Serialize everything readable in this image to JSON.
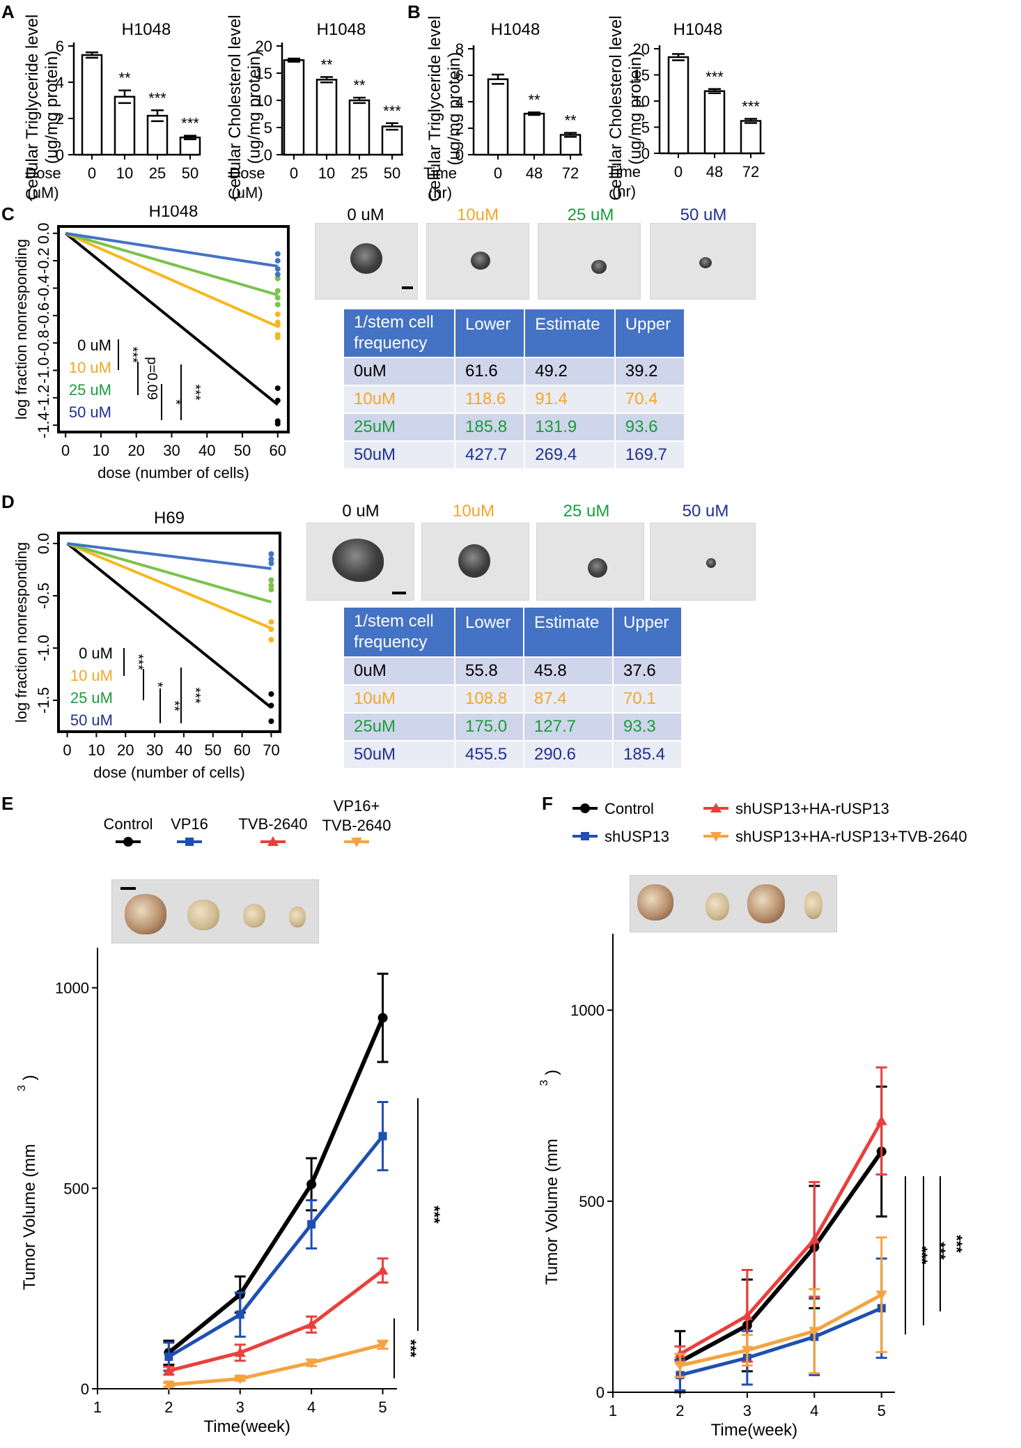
{
  "panel_letters": [
    "A",
    "B",
    "C",
    "D",
    "E",
    "F"
  ],
  "colors": {
    "c0": "#000000",
    "c10": "#f5a623",
    "c25": "#1a9b3c",
    "c50": "#1f2f8f",
    "line50": "#4472c4",
    "line25": "#7cc24b",
    "line10": "#f5b820",
    "tbl_head": "#4472c4",
    "ctrl": "#000000",
    "vp16": "#1f4fb0",
    "tvb": "#e8403c",
    "combo": "#f5a340"
  },
  "chart_data": [
    {
      "id": "A1",
      "type": "bar",
      "title": "H1048",
      "ylabel": "Cellular Triglyceride level\n(ug/mg protein)",
      "xlabel": "Dose\n(uM)",
      "categories": [
        "0",
        "10",
        "25",
        "50"
      ],
      "values": [
        5.5,
        3.2,
        2.15,
        0.95
      ],
      "errors": [
        0.15,
        0.35,
        0.3,
        0.1
      ],
      "significance": [
        "",
        "**",
        "***",
        "***"
      ],
      "ylim": [
        0,
        6
      ],
      "yticks": [
        0,
        2,
        4,
        6
      ]
    },
    {
      "id": "A2",
      "type": "bar",
      "title": "H1048",
      "ylabel": "Cellular Cholesterol level\n(ug/mg protein)",
      "xlabel": "Dose\n(uM)",
      "categories": [
        "0",
        "10",
        "25",
        "50"
      ],
      "values": [
        17.4,
        13.8,
        10.0,
        5.2
      ],
      "errors": [
        0.3,
        0.5,
        0.5,
        0.6
      ],
      "significance": [
        "",
        "**",
        "**",
        "***"
      ],
      "ylim": [
        0,
        20
      ],
      "yticks": [
        0,
        5,
        10,
        15,
        20
      ]
    },
    {
      "id": "B1",
      "type": "bar",
      "title": "H1048",
      "ylabel": "Cellular Triglyceride level\n(ug/mg protein)",
      "xlabel": "Time\n(hr)",
      "categories": [
        "0",
        "48",
        "72"
      ],
      "values": [
        5.7,
        3.1,
        1.5
      ],
      "errors": [
        0.35,
        0.1,
        0.15
      ],
      "significance": [
        "",
        "**",
        "**"
      ],
      "ylim": [
        0,
        8
      ],
      "yticks": [
        0,
        2,
        4,
        6,
        8
      ]
    },
    {
      "id": "B2",
      "type": "bar",
      "title": "H1048",
      "ylabel": "Cellular Cholesterol level\n(ug/mg protein)",
      "xlabel": "Time\n(hr)",
      "categories": [
        "0",
        "48",
        "72"
      ],
      "values": [
        18.4,
        11.9,
        6.2
      ],
      "errors": [
        0.6,
        0.4,
        0.4
      ],
      "significance": [
        "",
        "***",
        "***"
      ],
      "ylim": [
        0,
        20
      ],
      "yticks": [
        0,
        5,
        10,
        15,
        20
      ]
    },
    {
      "id": "C",
      "type": "line",
      "title": "H1048",
      "xlabel": "dose (number of cells)",
      "ylabel": "log fraction nonresponding",
      "xlim": [
        -2,
        63
      ],
      "ylim": [
        -1.45,
        0.05
      ],
      "xticks": [
        0,
        10,
        20,
        30,
        40,
        50,
        60
      ],
      "yticks": [
        0.0,
        -0.2,
        -0.4,
        -0.6,
        -0.8,
        -1.0,
        -1.2,
        -1.4
      ],
      "series": [
        {
          "name": "0 uM",
          "x": [
            0,
            60
          ],
          "y": [
            0,
            -1.25
          ],
          "points": [
            -1.13,
            -1.22,
            -1.37,
            -1.39
          ]
        },
        {
          "name": "10 uM",
          "x": [
            0,
            60
          ],
          "y": [
            0,
            -0.68
          ],
          "points": [
            -0.59,
            -0.65,
            -0.67,
            -0.74,
            -0.76
          ]
        },
        {
          "name": "25 uM",
          "x": [
            0,
            60
          ],
          "y": [
            0,
            -0.45
          ],
          "points": [
            -0.33,
            -0.42,
            -0.47,
            -0.52
          ]
        },
        {
          "name": "50 uM",
          "x": [
            0,
            60
          ],
          "y": [
            0,
            -0.24
          ],
          "points": [
            -0.15,
            -0.2,
            -0.26,
            -0.3
          ]
        }
      ],
      "legend": [
        "0 uM",
        "10 uM",
        "25 uM",
        "50 uM"
      ],
      "stats": [
        "***",
        "p=0.09",
        "*",
        "***"
      ]
    },
    {
      "id": "D",
      "type": "line",
      "title": "H69",
      "xlabel": "dose (number of cells)",
      "ylabel": "log fraction nonresponding",
      "xlim": [
        -3,
        73
      ],
      "ylim": [
        -1.8,
        0.1
      ],
      "xticks": [
        0,
        10,
        20,
        30,
        40,
        50,
        60,
        70
      ],
      "yticks": [
        0.0,
        -0.5,
        -1.0,
        -1.5
      ],
      "series": [
        {
          "name": "0 uM",
          "x": [
            0,
            70
          ],
          "y": [
            0,
            -1.57
          ],
          "points": [
            -1.44,
            -1.55,
            -1.7
          ]
        },
        {
          "name": "10 uM",
          "x": [
            0,
            70
          ],
          "y": [
            0,
            -0.81
          ],
          "points": [
            -0.75,
            -0.82,
            -0.92
          ]
        },
        {
          "name": "25 uM",
          "x": [
            0,
            70
          ],
          "y": [
            0,
            -0.56
          ],
          "points": [
            -0.35,
            -0.4,
            -0.44
          ]
        },
        {
          "name": "50 uM",
          "x": [
            0,
            70
          ],
          "y": [
            0,
            -0.24
          ],
          "points": [
            -0.1,
            -0.15,
            -0.19
          ]
        }
      ],
      "legend": [
        "0 uM",
        "10 uM",
        "25 uM",
        "50 uM"
      ],
      "stats": [
        "***",
        "*",
        "**",
        "***"
      ]
    },
    {
      "id": "E",
      "type": "line",
      "xlabel": "Time(week)",
      "ylabel": "Tumor Volume (mm",
      "ylabel_sup": "3",
      "ylabel_end": ")",
      "xlim": [
        1,
        5.2
      ],
      "ylim": [
        0,
        1100
      ],
      "xticks": [
        1,
        2,
        3,
        4,
        5
      ],
      "yticks": [
        0,
        500,
        1000
      ],
      "series": [
        {
          "name": "Control",
          "x": [
            2,
            3,
            4,
            5
          ],
          "y": [
            90,
            235,
            510,
            925
          ],
          "err": [
            30,
            45,
            65,
            110
          ]
        },
        {
          "name": "VP16",
          "x": [
            2,
            3,
            4,
            5
          ],
          "y": [
            80,
            185,
            410,
            630
          ],
          "err": [
            35,
            55,
            60,
            85
          ]
        },
        {
          "name": "TVB-2640",
          "x": [
            2,
            3,
            4,
            5
          ],
          "y": [
            45,
            90,
            160,
            295
          ],
          "err": [
            10,
            20,
            20,
            30
          ]
        },
        {
          "name": "VP16+ TVB-2640",
          "x": [
            2,
            3,
            4,
            5
          ],
          "y": [
            10,
            25,
            65,
            110
          ],
          "err": [
            5,
            5,
            8,
            10
          ]
        }
      ],
      "legend": [
        "Control",
        "VP16",
        "TVB-2640",
        "VP16+\nTVB-2640"
      ],
      "stats": [
        "***",
        "***"
      ]
    },
    {
      "id": "F",
      "type": "line",
      "xlabel": "Time(week)",
      "ylabel": "Tumor Volume (mm",
      "ylabel_sup": "3",
      "ylabel_end": ")",
      "xlim": [
        1,
        5.2
      ],
      "ylim": [
        0,
        1200
      ],
      "xticks": [
        1,
        2,
        3,
        4,
        5
      ],
      "yticks": [
        0,
        500,
        1000
      ],
      "series": [
        {
          "name": "Control",
          "x": [
            2,
            3,
            4,
            5
          ],
          "y": [
            80,
            175,
            380,
            630
          ],
          "err": [
            80,
            120,
            160,
            170
          ]
        },
        {
          "name": "shUSP13",
          "x": [
            2,
            3,
            4,
            5
          ],
          "y": [
            45,
            90,
            145,
            220
          ],
          "err": [
            40,
            70,
            100,
            130
          ]
        },
        {
          "name": "shUSP13+HA-rUSP13",
          "x": [
            2,
            3,
            4,
            5
          ],
          "y": [
            100,
            200,
            400,
            710
          ],
          "err": [
            20,
            120,
            150,
            140
          ]
        },
        {
          "name": "shUSP13+HA-rUSP13+TVB-2640",
          "x": [
            2,
            3,
            4,
            5
          ],
          "y": [
            70,
            110,
            160,
            255
          ],
          "err": [
            30,
            40,
            110,
            150
          ]
        }
      ],
      "legend": [
        "Control",
        "shUSP13",
        "shUSP13+HA-rUSP13",
        "shUSP13+HA-rUSP13+TVB-2640"
      ],
      "stats": [
        "***",
        "***",
        "***"
      ]
    }
  ],
  "images_c": {
    "labels": [
      "0 uM",
      "10uM",
      "25 uM",
      "50 uM"
    ]
  },
  "images_d": {
    "labels": [
      "0 uM",
      "10uM",
      "25 uM",
      "50 uM"
    ]
  },
  "table_c": {
    "headers": [
      "1/stem cell\nfrequency",
      "Lower",
      "Estimate",
      "Upper"
    ],
    "rows": [
      [
        "0uM",
        "61.6",
        "49.2",
        "39.2"
      ],
      [
        "10uM",
        "118.6",
        "91.4",
        "70.4"
      ],
      [
        "25uM",
        "185.8",
        "131.9",
        "93.6"
      ],
      [
        "50uM",
        "427.7",
        "269.4",
        "169.7"
      ]
    ]
  },
  "table_d": {
    "headers": [
      "1/stem cell\nfrequency",
      "Lower",
      "Estimate",
      "Upper"
    ],
    "rows": [
      [
        "0uM",
        "55.8",
        "45.8",
        "37.6"
      ],
      [
        "10uM",
        "108.8",
        "87.4",
        "70.1"
      ],
      [
        "25uM",
        "175.0",
        "127.7",
        "93.3"
      ],
      [
        "50uM",
        "455.5",
        "290.6",
        "185.4"
      ]
    ]
  }
}
